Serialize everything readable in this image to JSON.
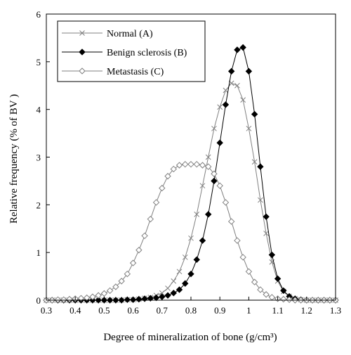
{
  "chart_data": {
    "type": "line",
    "title": "",
    "xlabel": "Degree of mineralization of bone (g/cm³)",
    "ylabel": "Relative frequency  (% of BV )",
    "xlim": [
      0.3,
      1.3
    ],
    "ylim": [
      0,
      6
    ],
    "x_ticks": [
      "0.3",
      "0.4",
      "0.5",
      "0.6",
      "0.7",
      "0.8",
      "0.9",
      "1",
      "1.1",
      "1.2",
      "1.3"
    ],
    "y_ticks": [
      "0",
      "1",
      "2",
      "3",
      "4",
      "5",
      "6"
    ],
    "x_tick_values": [
      0.3,
      0.4,
      0.5,
      0.6,
      0.7,
      0.8,
      0.9,
      1.0,
      1.1,
      1.2,
      1.3
    ],
    "y_tick_values": [
      0,
      1,
      2,
      3,
      4,
      5,
      6
    ],
    "grid": false,
    "legend_position": "top-left",
    "x": [
      0.3,
      0.32,
      0.34,
      0.36,
      0.38,
      0.4,
      0.42,
      0.44,
      0.46,
      0.48,
      0.5,
      0.52,
      0.54,
      0.56,
      0.58,
      0.6,
      0.62,
      0.64,
      0.66,
      0.68,
      0.7,
      0.72,
      0.74,
      0.76,
      0.78,
      0.8,
      0.82,
      0.84,
      0.86,
      0.88,
      0.9,
      0.92,
      0.94,
      0.96,
      0.98,
      1.0,
      1.02,
      1.04,
      1.06,
      1.08,
      1.1,
      1.12,
      1.14,
      1.16,
      1.18,
      1.2,
      1.22,
      1.24,
      1.26,
      1.28,
      1.3
    ],
    "series": [
      {
        "name": "Normal (A)",
        "marker": "cross",
        "color": "#808080",
        "values": [
          0.0,
          0.0,
          0.0,
          0.0,
          0.0,
          0.0,
          0.0,
          0.0,
          0.0,
          0.0,
          0.0,
          0.0,
          0.0,
          0.0,
          0.01,
          0.01,
          0.02,
          0.04,
          0.06,
          0.1,
          0.15,
          0.25,
          0.4,
          0.6,
          0.9,
          1.3,
          1.8,
          2.4,
          3.0,
          3.6,
          4.05,
          4.4,
          4.55,
          4.5,
          4.2,
          3.6,
          2.9,
          2.1,
          1.4,
          0.8,
          0.4,
          0.18,
          0.08,
          0.03,
          0.01,
          0.0,
          0.0,
          0.0,
          0.0,
          0.0,
          0.0
        ]
      },
      {
        "name": "Benign sclerosis (B)",
        "marker": "filled-diamond",
        "color": "#000000",
        "values": [
          0.0,
          0.0,
          0.0,
          0.0,
          0.0,
          0.0,
          0.0,
          0.0,
          0.0,
          0.0,
          0.0,
          0.0,
          0.0,
          0.0,
          0.01,
          0.01,
          0.02,
          0.03,
          0.04,
          0.05,
          0.07,
          0.1,
          0.15,
          0.22,
          0.35,
          0.55,
          0.85,
          1.25,
          1.8,
          2.5,
          3.3,
          4.1,
          4.8,
          5.25,
          5.3,
          4.8,
          3.9,
          2.8,
          1.75,
          0.95,
          0.45,
          0.2,
          0.08,
          0.03,
          0.01,
          0.0,
          0.0,
          0.0,
          0.0,
          0.0,
          0.0
        ]
      },
      {
        "name": "Metastasis (C)",
        "marker": "open-diamond",
        "color": "#808080",
        "values": [
          0.0,
          0.0,
          0.01,
          0.01,
          0.02,
          0.03,
          0.04,
          0.05,
          0.07,
          0.1,
          0.14,
          0.2,
          0.28,
          0.4,
          0.55,
          0.78,
          1.05,
          1.35,
          1.7,
          2.05,
          2.35,
          2.6,
          2.75,
          2.83,
          2.85,
          2.85,
          2.85,
          2.83,
          2.8,
          2.65,
          2.4,
          2.05,
          1.65,
          1.25,
          0.9,
          0.6,
          0.38,
          0.22,
          0.12,
          0.06,
          0.03,
          0.02,
          0.01,
          0.0,
          0.0,
          0.0,
          0.0,
          0.0,
          0.0,
          0.0,
          0.0
        ]
      }
    ]
  }
}
